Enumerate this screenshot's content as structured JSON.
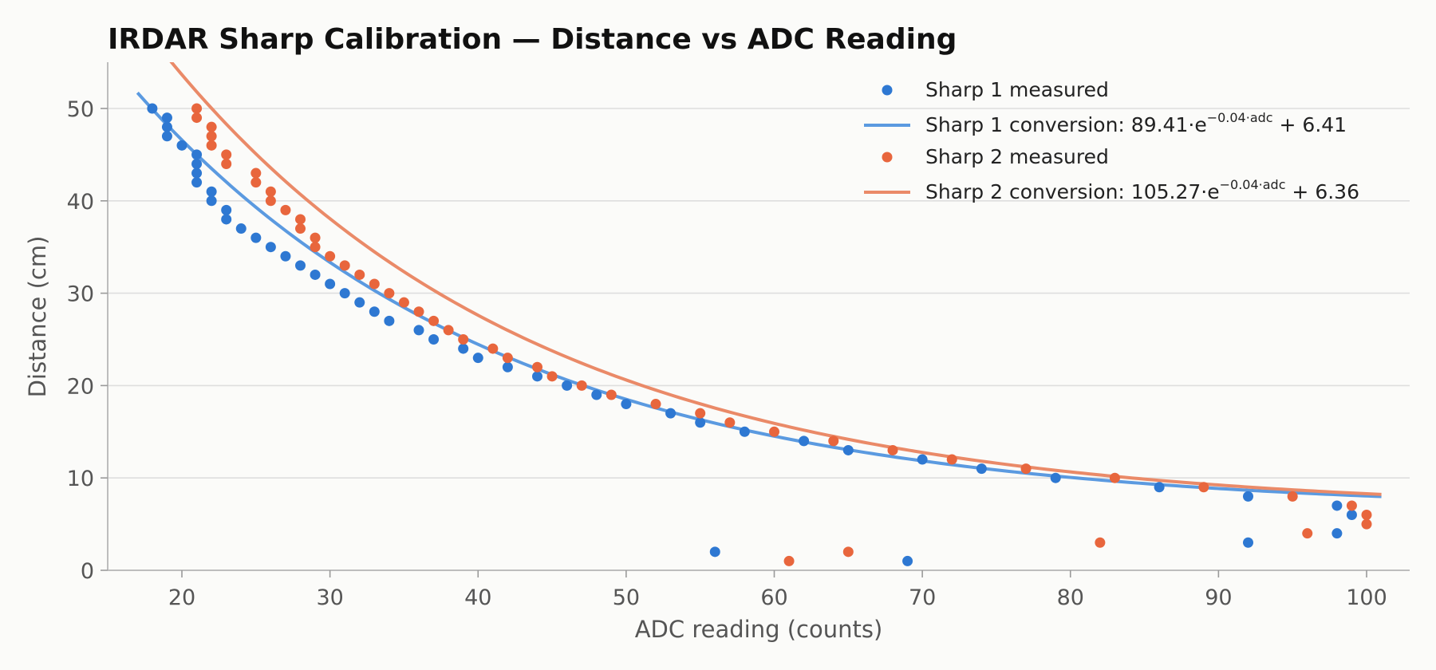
{
  "chart_data": {
    "type": "scatter",
    "title": "IRDAR Sharp Calibration — Distance vs ADC Reading",
    "xlabel": "ADC reading (counts)",
    "ylabel": "Distance (cm)",
    "xlim": [
      15,
      103
    ],
    "ylim": [
      0,
      55
    ],
    "xticks": [
      20,
      30,
      40,
      50,
      60,
      70,
      80,
      90,
      100
    ],
    "yticks": [
      0,
      10,
      20,
      30,
      40,
      50
    ],
    "grid": "horizontal",
    "legend_position": "top-right",
    "series": [
      {
        "name": "Sharp 1 measured",
        "type": "scatter",
        "color": "#2e78d2",
        "points": [
          [
            18,
            50
          ],
          [
            19,
            49
          ],
          [
            19,
            48
          ],
          [
            19,
            47
          ],
          [
            20,
            46
          ],
          [
            21,
            45
          ],
          [
            21,
            44
          ],
          [
            21,
            43
          ],
          [
            21,
            42
          ],
          [
            22,
            41
          ],
          [
            22,
            40
          ],
          [
            23,
            39
          ],
          [
            23,
            38
          ],
          [
            24,
            37
          ],
          [
            25,
            36
          ],
          [
            26,
            35
          ],
          [
            27,
            34
          ],
          [
            28,
            33
          ],
          [
            29,
            32
          ],
          [
            30,
            31
          ],
          [
            31,
            30
          ],
          [
            32,
            29
          ],
          [
            33,
            28
          ],
          [
            34,
            27
          ],
          [
            36,
            26
          ],
          [
            37,
            25
          ],
          [
            39,
            24
          ],
          [
            40,
            23
          ],
          [
            42,
            22
          ],
          [
            44,
            21
          ],
          [
            46,
            20
          ],
          [
            48,
            19
          ],
          [
            50,
            18
          ],
          [
            53,
            17
          ],
          [
            55,
            16
          ],
          [
            58,
            15
          ],
          [
            62,
            14
          ],
          [
            65,
            13
          ],
          [
            70,
            12
          ],
          [
            74,
            11
          ],
          [
            79,
            10
          ],
          [
            86,
            9
          ],
          [
            92,
            8
          ],
          [
            98,
            7
          ],
          [
            99,
            6
          ],
          [
            92,
            3
          ],
          [
            98,
            4
          ],
          [
            56,
            2
          ],
          [
            69,
            1
          ]
        ]
      },
      {
        "name": "Sharp 1 conversion",
        "type": "line",
        "color": "#5b9ae0",
        "formula": {
          "a": 89.41,
          "k": 0.04,
          "c": 6.41
        },
        "x_range": [
          17,
          101
        ]
      },
      {
        "name": "Sharp 2 measured",
        "type": "scatter",
        "color": "#e8663d",
        "points": [
          [
            21,
            50
          ],
          [
            21,
            49
          ],
          [
            22,
            48
          ],
          [
            22,
            47
          ],
          [
            22,
            46
          ],
          [
            23,
            45
          ],
          [
            23,
            44
          ],
          [
            25,
            43
          ],
          [
            25,
            42
          ],
          [
            26,
            41
          ],
          [
            26,
            40
          ],
          [
            27,
            39
          ],
          [
            28,
            38
          ],
          [
            28,
            37
          ],
          [
            29,
            36
          ],
          [
            29,
            35
          ],
          [
            30,
            34
          ],
          [
            31,
            33
          ],
          [
            32,
            32
          ],
          [
            33,
            31
          ],
          [
            34,
            30
          ],
          [
            35,
            29
          ],
          [
            36,
            28
          ],
          [
            37,
            27
          ],
          [
            38,
            26
          ],
          [
            39,
            25
          ],
          [
            41,
            24
          ],
          [
            42,
            23
          ],
          [
            44,
            22
          ],
          [
            45,
            21
          ],
          [
            47,
            20
          ],
          [
            49,
            19
          ],
          [
            52,
            18
          ],
          [
            55,
            17
          ],
          [
            57,
            16
          ],
          [
            60,
            15
          ],
          [
            64,
            14
          ],
          [
            68,
            13
          ],
          [
            72,
            12
          ],
          [
            77,
            11
          ],
          [
            83,
            10
          ],
          [
            89,
            9
          ],
          [
            95,
            8
          ],
          [
            99,
            7
          ],
          [
            100,
            6
          ],
          [
            100,
            5
          ],
          [
            96,
            4
          ],
          [
            82,
            3
          ],
          [
            65,
            2
          ],
          [
            61,
            1
          ]
        ]
      },
      {
        "name": "Sharp 2 conversion",
        "type": "line",
        "color": "#ea8a68",
        "formula": {
          "a": 105.27,
          "k": 0.04,
          "c": 6.36
        },
        "x_range": [
          17,
          101
        ]
      }
    ],
    "legend": [
      {
        "series": 0,
        "marker": "dot",
        "text": "Sharp 1 measured"
      },
      {
        "series": 1,
        "marker": "line",
        "text_pre": "Sharp 1 conversion: 89.41·e",
        "text_sup": "−0.04·adc",
        "text_post": " + 6.41"
      },
      {
        "series": 2,
        "marker": "dot",
        "text": "Sharp 2 measured"
      },
      {
        "series": 3,
        "marker": "line",
        "text_pre": "Sharp 2 conversion: 105.27·e",
        "text_sup": "−0.04·adc",
        "text_post": " + 6.36"
      }
    ]
  }
}
